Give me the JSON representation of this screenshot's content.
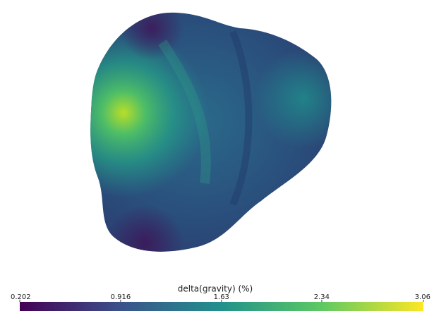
{
  "colorbar": {
    "title": "delta(gravity) (%)",
    "lim": [
      0.202,
      3.06
    ],
    "ticks": [
      0.202,
      0.916,
      1.63,
      2.34,
      3.06
    ],
    "colors": [
      "#440154",
      "#3b528b",
      "#21918c",
      "#5ec962",
      "#fde725"
    ]
  }
}
